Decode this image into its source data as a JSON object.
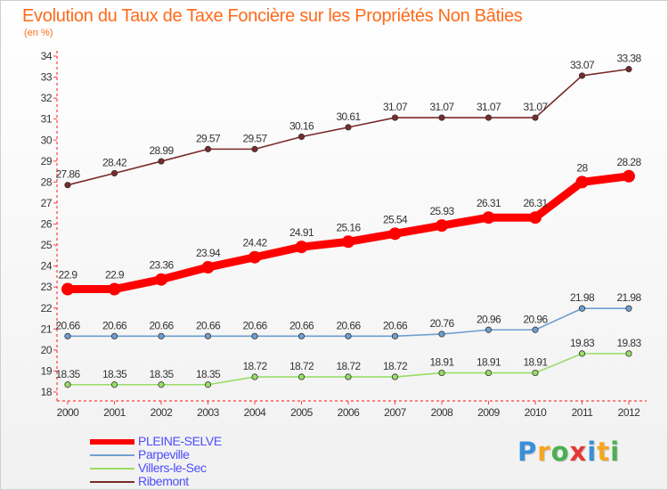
{
  "header": {
    "title": "Evolution du Taux de Taxe Foncière sur les Propriétés Non Bâties",
    "unit": "(en %)"
  },
  "chart_data": {
    "type": "line",
    "title": "Evolution du Taux de Taxe Foncière sur les Propriétés Non Bâties",
    "ylabel": "(en %)",
    "xlabel": "",
    "categories": [
      "2000",
      "2001",
      "2002",
      "2003",
      "2004",
      "2005",
      "2006",
      "2007",
      "2008",
      "2009",
      "2010",
      "2011",
      "2012"
    ],
    "ylim": [
      18,
      34
    ],
    "yticks": [
      18,
      19,
      20,
      21,
      22,
      23,
      24,
      25,
      26,
      27,
      28,
      29,
      30,
      31,
      32,
      33,
      34
    ],
    "grid": false,
    "legend_position": "bottom-left",
    "series": [
      {
        "name": "PLEINE-SELVE",
        "color": "#ff0000",
        "values": [
          22.9,
          22.9,
          23.36,
          23.94,
          24.42,
          24.91,
          25.16,
          25.54,
          25.93,
          26.31,
          26.31,
          28,
          28.28
        ],
        "labels": [
          "22.9",
          "22.9",
          "23.36",
          "23.94",
          "24.42",
          "24.91",
          "25.16",
          "25.54",
          "25.93",
          "26.31",
          "26.31",
          "28",
          "28.28"
        ]
      },
      {
        "name": "Parpeville",
        "color": "#6f9fd0",
        "values": [
          20.66,
          20.66,
          20.66,
          20.66,
          20.66,
          20.66,
          20.66,
          20.66,
          20.76,
          20.96,
          20.96,
          21.98,
          21.98
        ],
        "labels": [
          "20.66",
          "20.66",
          "20.66",
          "20.66",
          "20.66",
          "20.66",
          "20.66",
          "20.66",
          "20.76",
          "20.96",
          "20.96",
          "21.98",
          "21.98"
        ]
      },
      {
        "name": "Villers-le-Sec",
        "color": "#99dd66",
        "values": [
          18.35,
          18.35,
          18.35,
          18.35,
          18.72,
          18.72,
          18.72,
          18.72,
          18.91,
          18.91,
          18.91,
          19.83,
          19.83
        ],
        "labels": [
          "18.35",
          "18.35",
          "18.35",
          "18.35",
          "18.72",
          "18.72",
          "18.72",
          "18.72",
          "18.91",
          "18.91",
          "18.91",
          "19.83",
          "19.83"
        ]
      },
      {
        "name": "Ribemont",
        "color": "#7a2a2a",
        "values": [
          27.86,
          28.42,
          28.99,
          29.57,
          29.57,
          30.16,
          30.61,
          31.07,
          31.07,
          31.07,
          31.07,
          33.07,
          33.38
        ],
        "labels": [
          "27.86",
          "28.42",
          "28.99",
          "29.57",
          "29.57",
          "30.16",
          "30.61",
          "31.07",
          "31.07",
          "31.07",
          "31.07",
          "33.07",
          "33.38"
        ]
      }
    ]
  },
  "logo": {
    "letters": [
      "P",
      "r",
      "o",
      "x",
      "i",
      "t",
      "i"
    ],
    "colors": [
      "#3a8fd8",
      "#f5a623",
      "#4caf50",
      "#e53935",
      "#3a8fd8",
      "#f5a623",
      "#4caf50"
    ]
  }
}
